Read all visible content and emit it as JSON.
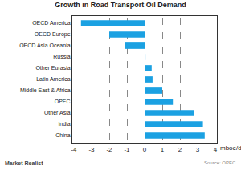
{
  "chart_data": {
    "type": "bar",
    "orientation": "horizontal",
    "title": "Growth in Road Transport Oil Demand",
    "xlabel": "mboe/d",
    "categories": [
      "OECD America",
      "OECD Europe",
      "OECD Asia Oceania",
      "Russia",
      "Other Eurasia",
      "Latin America",
      "Middle East & Africa",
      "OPEC",
      "Other Asia",
      "India",
      "China"
    ],
    "values": [
      -3.6,
      -2.0,
      -1.1,
      0.05,
      0.4,
      0.45,
      1.0,
      1.6,
      2.8,
      3.3,
      3.4
    ],
    "color": "#1ba1e2",
    "xlim": [
      -4,
      4
    ],
    "xticks": [
      -4,
      -3,
      -2,
      -1,
      0,
      1,
      2,
      3,
      4
    ],
    "grid": true,
    "annotations": [
      {
        "text": "Source: OPEC"
      },
      {
        "text": "Market Realist"
      }
    ]
  }
}
